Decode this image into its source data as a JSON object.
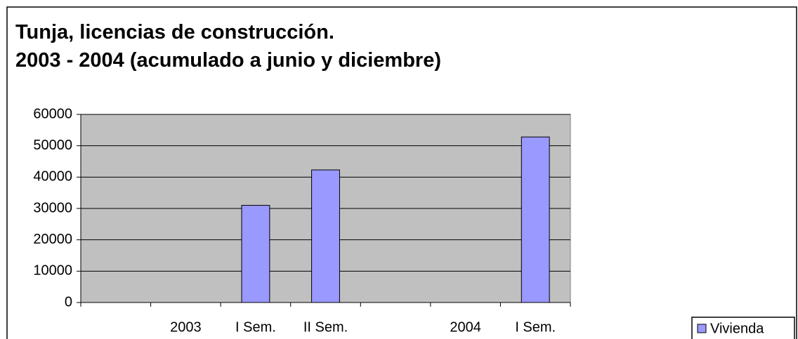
{
  "chart_data": {
    "type": "bar",
    "title": "Tunja, licencias de construcción.",
    "subtitle": "2003 - 2004 (acumulado a junio y diciembre)",
    "categories": [
      null,
      "2003",
      "I Sem.",
      "II Sem.",
      null,
      "2004",
      "I Sem."
    ],
    "series": [
      {
        "name": "Vivienda",
        "color": "#9999ff",
        "values": [
          null,
          null,
          31000,
          42300,
          null,
          null,
          52800
        ]
      }
    ],
    "ylim": [
      0,
      60000
    ],
    "yticks": [
      0,
      10000,
      20000,
      30000,
      40000,
      50000,
      60000
    ],
    "grid": true,
    "legend": "bottom-right"
  }
}
